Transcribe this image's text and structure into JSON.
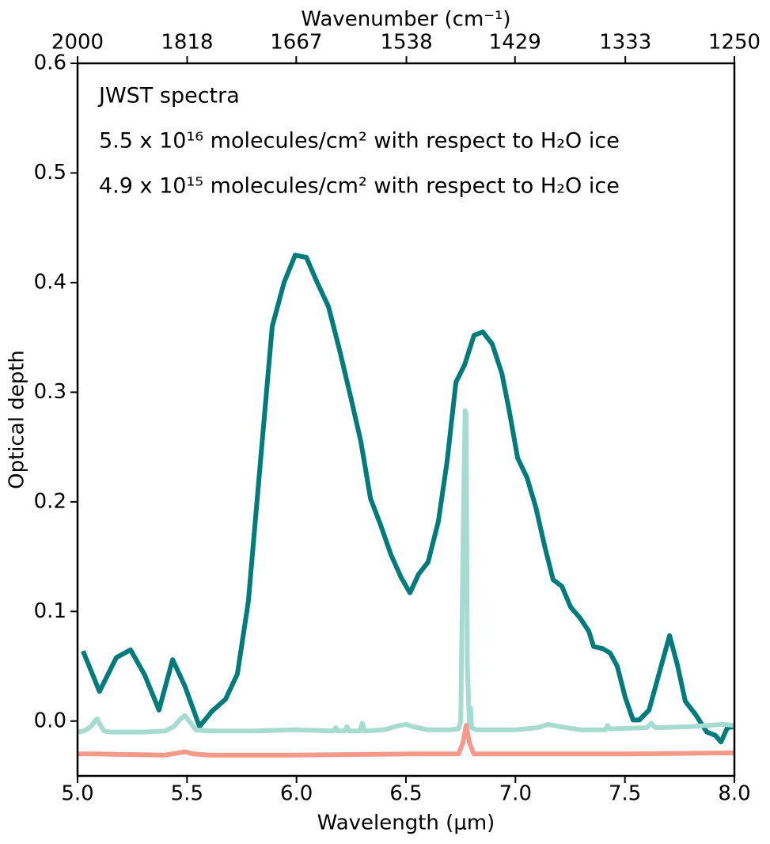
{
  "chart_data": {
    "type": "line",
    "xlabel": "Wavelength (μm)",
    "ylabel": "Optical depth",
    "x2label": "Wavenumber (cm⁻¹)",
    "xlim": [
      5.0,
      8.0
    ],
    "ylim": [
      -0.05,
      0.6
    ],
    "xticks": [
      {
        "value": 5,
        "label": "5.0"
      },
      5.5,
      {
        "value": 6,
        "label": "6.0"
      },
      6.5,
      {
        "value": 7,
        "label": "7.0"
      },
      7.5,
      {
        "value": 8,
        "label": "8.0"
      }
    ],
    "yticks": [
      {
        "value": 0,
        "label": "0.0"
      },
      0.1,
      0.2,
      0.3,
      0.4,
      0.5,
      0.6
    ],
    "x2ticks": [
      2000,
      1818,
      1667,
      1538,
      1429,
      1333,
      1250
    ],
    "series": [
      {
        "name": "JWST spectra",
        "color": "#007b7b",
        "label_color": "#008080",
        "x": [
          5.025,
          5.1,
          5.177,
          5.242,
          5.307,
          5.372,
          5.434,
          5.49,
          5.557,
          5.614,
          5.676,
          5.73,
          5.78,
          5.839,
          5.889,
          5.943,
          5.994,
          6.045,
          6.095,
          6.146,
          6.196,
          6.247,
          6.294,
          6.338,
          6.384,
          6.431,
          6.478,
          6.518,
          6.558,
          6.601,
          6.648,
          6.688,
          6.728,
          6.768,
          6.811,
          6.851,
          6.894,
          6.938,
          6.97,
          7.01,
          7.053,
          7.093,
          7.133,
          7.172,
          7.212,
          7.252,
          7.295,
          7.335,
          7.357,
          7.4,
          7.433,
          7.465,
          7.501,
          7.537,
          7.566,
          7.61,
          7.664,
          7.704,
          7.74,
          7.776,
          7.823,
          7.874,
          7.913,
          7.939,
          7.968,
          8.0
        ],
        "values": [
          0.064,
          0.027,
          0.058,
          0.065,
          0.042,
          0.01,
          0.056,
          0.032,
          -0.005,
          0.009,
          0.02,
          0.043,
          0.109,
          0.245,
          0.36,
          0.4,
          0.425,
          0.423,
          0.4,
          0.378,
          0.339,
          0.296,
          0.255,
          0.203,
          0.179,
          0.152,
          0.131,
          0.117,
          0.134,
          0.145,
          0.182,
          0.237,
          0.309,
          0.325,
          0.352,
          0.355,
          0.344,
          0.317,
          0.285,
          0.24,
          0.222,
          0.195,
          0.16,
          0.129,
          0.123,
          0.104,
          0.094,
          0.082,
          0.068,
          0.066,
          0.062,
          0.05,
          0.022,
          0.001,
          0.001,
          0.01,
          0.049,
          0.078,
          0.051,
          0.018,
          0.006,
          -0.01,
          -0.013,
          -0.019,
          -0.006,
          -0.005
        ]
      },
      {
        "name": "5.5 x 10¹⁶ molecules/cm² with respect to H₂O ice",
        "color": "#a6dccf",
        "label_color": "#4aa8a0",
        "x": [
          5.0,
          5.03,
          5.06,
          5.08,
          5.09,
          5.1,
          5.12,
          5.15,
          5.3,
          5.4,
          5.44,
          5.47,
          5.49,
          5.51,
          5.54,
          5.6,
          5.8,
          6.0,
          6.17,
          6.18,
          6.19,
          6.22,
          6.23,
          6.24,
          6.29,
          6.3,
          6.31,
          6.4,
          6.47,
          6.5,
          6.53,
          6.6,
          6.7,
          6.74,
          6.75,
          6.76,
          6.77,
          6.775,
          6.78,
          6.79,
          6.795,
          6.8,
          6.82,
          7.0,
          7.1,
          7.15,
          7.2,
          7.3,
          7.41,
          7.42,
          7.43,
          7.6,
          7.62,
          7.64,
          7.8,
          7.95,
          8.0
        ],
        "values": [
          -0.01,
          -0.009,
          -0.005,
          0.0,
          0.002,
          -0.002,
          -0.009,
          -0.01,
          -0.01,
          -0.009,
          -0.005,
          0.002,
          0.005,
          0.0,
          -0.008,
          -0.009,
          -0.009,
          -0.008,
          -0.009,
          -0.006,
          -0.009,
          -0.009,
          -0.005,
          -0.009,
          -0.009,
          -0.002,
          -0.009,
          -0.008,
          -0.004,
          -0.003,
          -0.005,
          -0.008,
          -0.008,
          -0.007,
          0.0,
          0.15,
          0.283,
          0.28,
          0.05,
          -0.003,
          0.012,
          -0.006,
          -0.008,
          -0.008,
          -0.006,
          -0.003,
          -0.005,
          -0.008,
          -0.008,
          -0.004,
          -0.007,
          -0.006,
          -0.002,
          -0.006,
          -0.005,
          -0.003,
          -0.004
        ]
      },
      {
        "name": "4.9 x 10¹⁵ molecules/cm² with respect to H₂O ice",
        "color": "#f59a8a",
        "label_color": "#f07f6c",
        "x": [
          5.0,
          5.1,
          5.4,
          5.46,
          5.49,
          5.53,
          5.6,
          6.0,
          6.5,
          6.74,
          6.76,
          6.775,
          6.79,
          6.81,
          7.0,
          7.5,
          8.0
        ],
        "values": [
          -0.03,
          -0.03,
          -0.031,
          -0.029,
          -0.028,
          -0.03,
          -0.031,
          -0.031,
          -0.03,
          -0.03,
          -0.02,
          -0.004,
          -0.02,
          -0.03,
          -0.03,
          -0.03,
          -0.029
        ]
      }
    ]
  }
}
